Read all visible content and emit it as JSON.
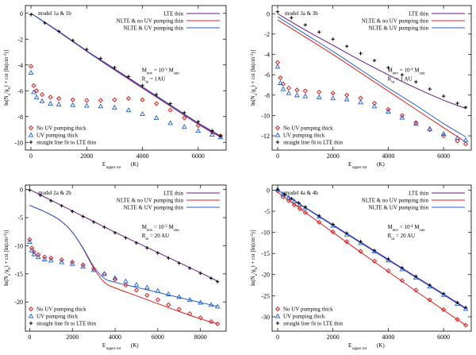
{
  "series_colors": {
    "lte": "#6a1a8a",
    "nlte_no_uv": "#e02020",
    "nlte_uv": "#2060d0",
    "marker_lte": "#000000"
  },
  "chart_data": [
    {
      "type": "scatter",
      "panel": "top-left",
      "model_label": "model 1a & 1b",
      "xlim": [
        -200,
        7000
      ],
      "ylim": [
        -10.6,
        0.6
      ],
      "xticks": [
        0,
        2000,
        4000,
        6000
      ],
      "yticks": [
        0,
        -2,
        -4,
        -6,
        -8,
        -10
      ],
      "ylabel": "ln(N_u/g_u) + cst [ln(cm^-2)]",
      "xlabel_main": "E",
      "xlabel_sub": "upper rot",
      "xlabel_unit": "(K)",
      "annotations": [
        "M_env = 10^-5 M_sun",
        "R_in = 1AU"
      ],
      "line_legend": [
        "LTE thin",
        "NLTE & no UV pumping thin",
        "NLTE & UV pumping thin"
      ],
      "marker_legend": [
        "No UV pumping thick",
        "UV pumping thick",
        "straight line fit to LTE thin"
      ],
      "lines": [
        {
          "name": "LTE thin",
          "color": "#6a1a8a",
          "x": [
            0,
            1000,
            2000,
            3000,
            4000,
            5000,
            6000,
            6800
          ],
          "y": [
            0,
            -1.4,
            -2.9,
            -4.3,
            -5.7,
            -7.1,
            -8.5,
            -9.5
          ]
        },
        {
          "name": "NLTE & no UV pumping thin",
          "color": "#e02020",
          "x": [
            0,
            1000,
            2000,
            3000,
            4000,
            5000,
            6000,
            6800
          ],
          "y": [
            0,
            -1.45,
            -2.95,
            -4.4,
            -5.8,
            -7.2,
            -8.6,
            -9.6
          ]
        },
        {
          "name": "NLTE & UV pumping thin",
          "color": "#2060d0",
          "x": [
            0,
            1000,
            2000,
            3000,
            4000,
            5000,
            6000,
            6800
          ],
          "y": [
            0,
            -1.42,
            -2.92,
            -4.35,
            -5.75,
            -7.15,
            -8.55,
            -9.55
          ]
        }
      ],
      "markers": [
        {
          "name": "No UV pumping thick",
          "shape": "diamond",
          "color": "#e02020",
          "x": [
            0,
            100,
            200,
            400,
            700,
            1000,
            1500,
            2000,
            2500,
            3000,
            3500,
            4000,
            4500,
            5000,
            5500,
            6000,
            6500,
            6800
          ],
          "y": [
            -4.1,
            -5.6,
            -6.0,
            -6.3,
            -6.5,
            -6.6,
            -6.7,
            -6.75,
            -6.75,
            -6.7,
            -6.6,
            -6.7,
            -7.0,
            -7.5,
            -8.1,
            -8.7,
            -9.2,
            -9.5
          ]
        },
        {
          "name": "UV pumping thick",
          "shape": "triangle",
          "color": "#2060d0",
          "x": [
            0,
            100,
            200,
            400,
            700,
            1000,
            1500,
            2000,
            2500,
            3000,
            3500,
            4000,
            4500,
            5000,
            5500,
            6000,
            6500,
            6800
          ],
          "y": [
            -4.6,
            -6.1,
            -6.5,
            -6.8,
            -7.0,
            -7.05,
            -7.1,
            -7.15,
            -7.2,
            -7.3,
            -7.5,
            -7.8,
            -8.1,
            -8.5,
            -8.8,
            -9.1,
            -9.4,
            -9.6
          ]
        },
        {
          "name": "straight line fit to LTE thin",
          "shape": "plus",
          "color": "#000000",
          "x": [
            0,
            500,
            1000,
            1500,
            2000,
            2500,
            3000,
            3500,
            4000,
            4500,
            5000,
            5500,
            6000,
            6500,
            6800
          ],
          "y": [
            -0.1,
            -0.75,
            -1.4,
            -2.1,
            -2.8,
            -3.5,
            -4.2,
            -4.9,
            -5.6,
            -6.3,
            -7.0,
            -7.7,
            -8.4,
            -9.1,
            -9.5
          ]
        }
      ]
    },
    {
      "type": "scatter",
      "panel": "top-right",
      "model_label": "model 3a & 3b",
      "xlim": [
        -200,
        7000
      ],
      "ylim": [
        -13.4,
        0.8
      ],
      "xticks": [
        0,
        2000,
        4000,
        6000
      ],
      "yticks": [
        0,
        -2,
        -4,
        -6,
        -8,
        -10,
        -12
      ],
      "ylabel": "ln(N_u/g_u) + cst [ln(cm^-2)]",
      "xlabel_main": "E",
      "xlabel_sub": "upper rot",
      "xlabel_unit": "(K)",
      "annotations": [
        "M_env = 10^-4 M_sun",
        "R_in = 1 AU"
      ],
      "line_legend": [
        "LTE thin",
        "NLTE & no UV pumping thin",
        "NLTE & UV pumping thin"
      ],
      "marker_legend": [
        "No UV pumping thick",
        "UV pumping thick",
        "straight line fit to LTE thin"
      ],
      "lines": [
        {
          "name": "LTE thin",
          "color": "#6a1a8a",
          "x": [
            0,
            1000,
            2000,
            3000,
            4000,
            5000,
            6000,
            6800
          ],
          "y": [
            0,
            -1.6,
            -3.1,
            -4.6,
            -6.0,
            -7.3,
            -8.5,
            -9.3
          ]
        },
        {
          "name": "NLTE & no UV pumping thin",
          "color": "#e02020",
          "x": [
            0,
            1000,
            2000,
            3000,
            4000,
            5000,
            6000,
            6800
          ],
          "y": [
            -0.6,
            -2.3,
            -4.0,
            -5.8,
            -7.6,
            -9.4,
            -11.2,
            -12.6
          ]
        },
        {
          "name": "NLTE & UV pumping thin",
          "color": "#2060d0",
          "x": [
            0,
            1000,
            2000,
            3000,
            4000,
            5000,
            6000,
            6800
          ],
          "y": [
            -0.3,
            -2.0,
            -3.7,
            -5.5,
            -7.3,
            -9.0,
            -10.8,
            -12.1
          ]
        }
      ],
      "markers": [
        {
          "name": "No UV pumping thick",
          "shape": "diamond",
          "color": "#e02020",
          "x": [
            0,
            100,
            200,
            400,
            700,
            1000,
            1500,
            2000,
            2500,
            3000,
            3500,
            4000,
            4500,
            5000,
            5500,
            6000,
            6500,
            6800
          ],
          "y": [
            -4.8,
            -6.3,
            -6.9,
            -7.3,
            -7.5,
            -7.6,
            -7.7,
            -7.8,
            -8.0,
            -8.3,
            -8.8,
            -9.4,
            -10.0,
            -10.7,
            -11.4,
            -12.0,
            -12.5,
            -12.8
          ]
        },
        {
          "name": "UV pumping thick",
          "shape": "triangle",
          "color": "#2060d0",
          "x": [
            0,
            100,
            200,
            400,
            700,
            1000,
            1500,
            2000,
            2500,
            3000,
            3500,
            4000,
            4500,
            5000,
            5500,
            6000,
            6500,
            6800
          ],
          "y": [
            -5.2,
            -6.8,
            -7.4,
            -7.8,
            -8.0,
            -8.1,
            -8.2,
            -8.3,
            -8.4,
            -8.7,
            -9.1,
            -9.6,
            -10.2,
            -10.8,
            -11.3,
            -11.8,
            -12.2,
            -12.4
          ]
        },
        {
          "name": "straight line fit to LTE thin",
          "shape": "plus",
          "color": "#000000",
          "x": [
            0,
            500,
            1000,
            1500,
            2000,
            2500,
            3000,
            3500,
            4000,
            4500,
            5000,
            5500,
            6000,
            6500,
            6800
          ],
          "y": [
            0.2,
            -0.4,
            -1.1,
            -1.8,
            -2.5,
            -3.2,
            -3.9,
            -4.6,
            -5.3,
            -6.0,
            -6.7,
            -7.4,
            -8.1,
            -8.8,
            -9.2
          ]
        }
      ]
    },
    {
      "type": "scatter",
      "panel": "bottom-left",
      "model_label": "model 2a & 2b",
      "xlim": [
        -200,
        9200
      ],
      "ylim": [
        -25.2,
        0.8
      ],
      "xticks": [
        0,
        2000,
        4000,
        6000,
        8000
      ],
      "yticks": [
        0,
        -5,
        -10,
        -15,
        -20
      ],
      "ylabel": "ln(N_u/g_u) + cst [ln(cm^-2)]",
      "xlabel_main": "E",
      "xlabel_sub": "upper rot",
      "xlabel_unit": "(K)",
      "annotations": [
        "M_env = 10^-5 M_sun",
        "R_in = 20 AU"
      ],
      "line_legend": [
        "LTE thin",
        "NLTE & no UV pumping thin",
        "NLTE & UV pumping thin"
      ],
      "marker_legend": [
        "No UV pumping thick",
        "UV pumping thick",
        "straight line fit to LTE thin"
      ],
      "lines": [
        {
          "name": "LTE thin",
          "color": "#6a1a8a",
          "x": [
            0,
            1000,
            2000,
            3000,
            4000,
            5000,
            6000,
            7000,
            8000,
            8800
          ],
          "y": [
            0,
            -1.9,
            -3.8,
            -5.7,
            -7.6,
            -9.4,
            -11.2,
            -13.0,
            -14.8,
            -16.3
          ]
        },
        {
          "name": "NLTE & no UV pumping thin",
          "color": "#e02020",
          "x": [
            0,
            500,
            1000,
            1500,
            2000,
            2500,
            3000,
            3500,
            4000,
            5000,
            6000,
            7000,
            8000,
            8800
          ],
          "y": [
            -2.8,
            -3.6,
            -4.5,
            -5.7,
            -7.6,
            -10.5,
            -14.0,
            -16.5,
            -17.5,
            -18.9,
            -20.3,
            -21.7,
            -23.0,
            -23.9
          ]
        },
        {
          "name": "NLTE & UV pumping thin",
          "color": "#2060d0",
          "x": [
            0,
            500,
            1000,
            1500,
            2000,
            2500,
            3000,
            3500,
            4000,
            5000,
            6000,
            7000,
            8000,
            8800
          ],
          "y": [
            -2.8,
            -3.6,
            -4.5,
            -5.7,
            -7.6,
            -10.4,
            -13.7,
            -15.8,
            -16.5,
            -17.4,
            -18.3,
            -19.2,
            -20.1,
            -20.8
          ]
        }
      ],
      "markers": [
        {
          "name": "No UV pumping thick",
          "shape": "diamond",
          "color": "#e02020",
          "x": [
            0,
            100,
            200,
            400,
            700,
            1000,
            1500,
            2000,
            2500,
            3000,
            3500,
            4000,
            4500,
            5000,
            5500,
            6000,
            6500,
            7000,
            7500,
            8000,
            8500,
            8800
          ],
          "y": [
            -8.9,
            -10.4,
            -11.1,
            -11.6,
            -12.0,
            -12.2,
            -12.5,
            -12.9,
            -13.4,
            -14.1,
            -15.0,
            -16.0,
            -17.0,
            -17.9,
            -18.8,
            -19.6,
            -20.5,
            -21.3,
            -22.1,
            -22.8,
            -23.5,
            -23.9
          ]
        },
        {
          "name": "UV pumping thick",
          "shape": "triangle",
          "color": "#2060d0",
          "x": [
            0,
            100,
            200,
            400,
            700,
            1000,
            1500,
            2000,
            2500,
            3000,
            3500,
            4000,
            4500,
            5000,
            5500,
            6000,
            6500,
            7000,
            7500,
            8000,
            8500,
            8800
          ],
          "y": [
            -9.3,
            -10.8,
            -11.5,
            -12.0,
            -12.4,
            -12.6,
            -12.9,
            -13.2,
            -13.7,
            -14.3,
            -15.0,
            -15.7,
            -16.3,
            -16.9,
            -17.4,
            -18.0,
            -18.6,
            -19.1,
            -19.6,
            -20.1,
            -20.5,
            -20.8
          ]
        },
        {
          "name": "straight line fit to LTE thin",
          "shape": "plus",
          "color": "#000000",
          "x": [
            0,
            500,
            1000,
            1500,
            2000,
            2500,
            3000,
            3500,
            4000,
            4500,
            5000,
            5500,
            6000,
            6500,
            7000,
            7500,
            8000,
            8500,
            8800
          ],
          "y": [
            -0.1,
            -1.0,
            -2.0,
            -2.9,
            -3.9,
            -4.8,
            -5.8,
            -6.7,
            -7.7,
            -8.6,
            -9.5,
            -10.4,
            -11.3,
            -12.2,
            -13.1,
            -14.0,
            -14.9,
            -15.8,
            -16.4
          ]
        }
      ]
    },
    {
      "type": "scatter",
      "panel": "bottom-right",
      "model_label": "model 4a & 4b",
      "xlim": [
        -200,
        7000
      ],
      "ylim": [
        -33.4,
        1.2
      ],
      "xticks": [
        0,
        2000,
        4000,
        6000
      ],
      "yticks": [
        0,
        -5,
        -10,
        -15,
        -20,
        -25,
        -30
      ],
      "ylabel": "ln(N_u/g_u) + cst [ln(cm^-2)]",
      "xlabel_main": "E",
      "xlabel_sub": "upper rot",
      "xlabel_unit": "(K)",
      "annotations": [
        "M_env = 10^-4 M_sun",
        "R_in = 20 AU"
      ],
      "line_legend": [
        "LTE thin",
        "NLTE & no UV pumping thin",
        "NLTE & UV pumping thin"
      ],
      "marker_legend": [
        "No UV pumping thick",
        "UV pumping thick",
        "straight line fit to LTE thin"
      ],
      "lines": [
        {
          "name": "LTE thin",
          "color": "#6a1a8a",
          "x": [
            0,
            1000,
            2000,
            3000,
            4000,
            5000,
            6000,
            6800
          ],
          "y": [
            0,
            -4.1,
            -8.2,
            -12.3,
            -16.4,
            -20.5,
            -24.6,
            -27.9
          ]
        },
        {
          "name": "NLTE & no UV pumping thin",
          "color": "#e02020",
          "x": [
            0,
            1000,
            2000,
            3000,
            4000,
            5000,
            6000,
            6800
          ],
          "y": [
            -0.5,
            -5.3,
            -10.0,
            -14.7,
            -19.3,
            -23.9,
            -28.4,
            -32.0
          ]
        },
        {
          "name": "NLTE & UV pumping thin",
          "color": "#2060d0",
          "x": [
            0,
            1000,
            2000,
            3000,
            4000,
            5000,
            6000,
            6800
          ],
          "y": [
            0,
            -4.2,
            -8.4,
            -12.5,
            -16.6,
            -20.7,
            -24.8,
            -28.1
          ]
        }
      ],
      "markers": [
        {
          "name": "No UV pumping thick",
          "shape": "diamond",
          "color": "#e02020",
          "x": [
            0,
            200,
            400,
            600,
            800,
            1000,
            1500,
            2000,
            2500,
            3000,
            3500,
            4000,
            4500,
            5000,
            5500,
            6000,
            6500,
            6800
          ],
          "y": [
            -0.2,
            -1.6,
            -2.5,
            -3.5,
            -4.4,
            -5.3,
            -7.6,
            -9.9,
            -12.2,
            -14.5,
            -16.8,
            -19.1,
            -21.4,
            -23.7,
            -26.0,
            -28.3,
            -30.6,
            -32.0
          ]
        },
        {
          "name": "UV pumping thick",
          "shape": "triangle",
          "color": "#2060d0",
          "x": [
            0,
            200,
            400,
            600,
            800,
            1000,
            1500,
            2000,
            2500,
            3000,
            3500,
            4000,
            4500,
            5000,
            5500,
            6000,
            6500,
            6800
          ],
          "y": [
            0.2,
            -0.9,
            -1.8,
            -2.6,
            -3.4,
            -4.2,
            -6.3,
            -8.4,
            -10.5,
            -12.5,
            -14.5,
            -16.6,
            -18.7,
            -20.7,
            -22.8,
            -24.8,
            -26.9,
            -28.1
          ]
        },
        {
          "name": "straight line fit to LTE thin",
          "shape": "plus",
          "color": "#000000",
          "x": [
            0,
            250,
            500,
            750,
            1000,
            1500,
            2000,
            2500,
            3000,
            3500,
            4000,
            4500,
            5000,
            5500,
            6000,
            6500,
            6800
          ],
          "y": [
            0.1,
            -1.0,
            -2.0,
            -3.0,
            -4.0,
            -6.1,
            -8.1,
            -10.2,
            -12.2,
            -14.3,
            -16.3,
            -18.4,
            -20.4,
            -22.5,
            -24.5,
            -26.6,
            -27.8
          ]
        }
      ]
    }
  ]
}
